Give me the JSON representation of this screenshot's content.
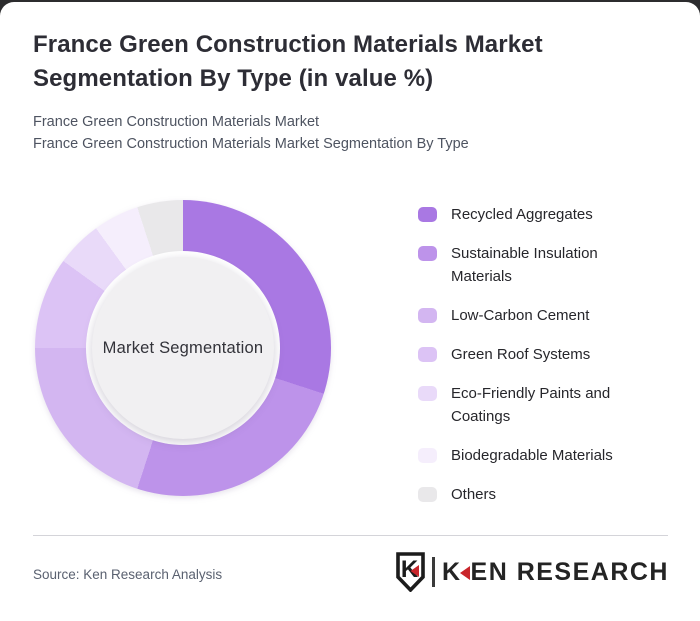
{
  "header": {
    "title": "France Green Construction Materials Market Segmentation By Type (in value %)",
    "subtitle_line1": "France Green Construction Materials Market",
    "subtitle_line2": "France Green Construction Materials Market Segmentation By Type"
  },
  "chart_data": {
    "type": "pie",
    "variant": "donut",
    "title": "France Green Construction Materials Market Segmentation By Type (in value %)",
    "center_label": "Market Segmentation",
    "unit": "value %",
    "start_angle_deg": 0,
    "direction": "clockwise",
    "legend_position": "right",
    "categories": [
      "Recycled Aggregates",
      "Sustainable Insulation Materials",
      "Low-Carbon Cement",
      "Green Roof Systems",
      "Eco-Friendly Paints and Coatings",
      "Biodegradable Materials",
      "Others"
    ],
    "values": [
      30,
      25,
      20,
      10,
      5,
      5,
      5
    ],
    "colors": [
      "#a978e3",
      "#bd93ea",
      "#d3b6f1",
      "#dcc3f5",
      "#e9daf9",
      "#f5eefc",
      "#e9e8ea"
    ],
    "center_color": "#f1f0f2"
  },
  "footer": {
    "source": "Source: Ken Research Analysis",
    "logo": {
      "badge_letter": "K",
      "wordmark_first_letter": "K",
      "wordmark_rest": "EN RESEARCH",
      "red": "#c9252b",
      "dark": "#242424"
    }
  }
}
